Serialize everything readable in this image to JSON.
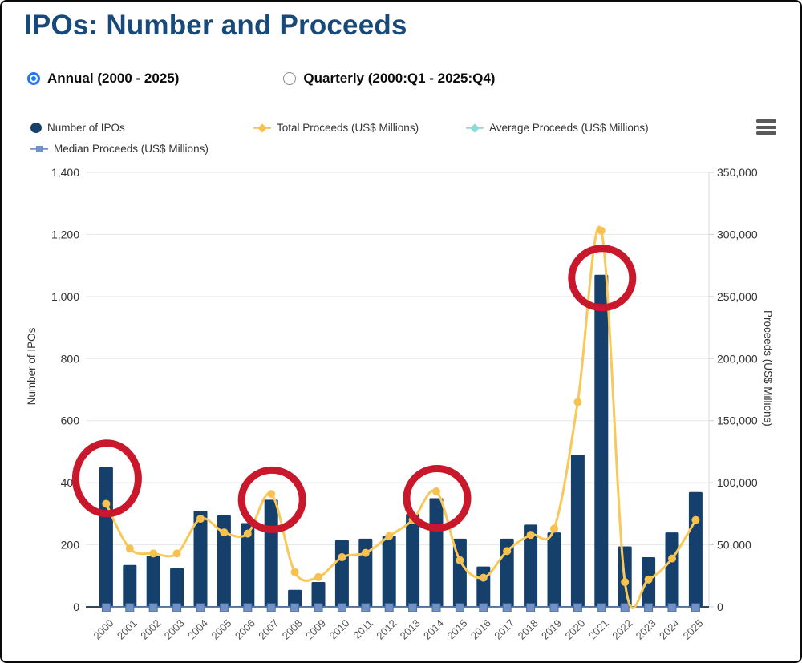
{
  "page": {
    "title": "IPOs: Number and Proceeds"
  },
  "controls": {
    "annual_label": "Annual (2000 - 2025)",
    "quarterly_label": "Quarterly (2000:Q1 - 2025:Q4)",
    "selected": "annual"
  },
  "legend": [
    {
      "label": "Number of IPOs",
      "marker": "circle",
      "color": "#15406B"
    },
    {
      "label": "Total Proceeds (US$ Millions)",
      "marker": "diamond-line",
      "color": "#F7C14F"
    },
    {
      "label": "Average Proceeds (US$ Millions)",
      "marker": "diamond-line",
      "color": "#8ADBD6"
    },
    {
      "label": "Median Proceeds (US$ Millions)",
      "marker": "square-line",
      "color": "#7191C7"
    }
  ],
  "chart_data": {
    "type": "bar",
    "subtype": "column + spline combo, dual y-axes",
    "categories": [
      "2000",
      "2001",
      "2002",
      "2003",
      "2004",
      "2005",
      "2006",
      "2007",
      "2008",
      "2009",
      "2010",
      "2011",
      "2012",
      "2013",
      "2014",
      "2015",
      "2016",
      "2017",
      "2018",
      "2019",
      "2020",
      "2021",
      "2022",
      "2023",
      "2024",
      "2025"
    ],
    "series": [
      {
        "name": "Number of IPOs",
        "type": "column",
        "axis": "left",
        "color": "#15406B",
        "values": [
          450,
          135,
          165,
          125,
          310,
          295,
          270,
          345,
          55,
          80,
          215,
          220,
          230,
          300,
          350,
          220,
          130,
          220,
          265,
          240,
          490,
          1070,
          195,
          160,
          240,
          370
        ]
      },
      {
        "name": "Total Proceeds (US$ Millions)",
        "type": "spline",
        "axis": "right",
        "color": "#F9C858",
        "values": [
          83000,
          47000,
          43000,
          43000,
          71000,
          60000,
          59000,
          91000,
          28000,
          24000,
          40000,
          43500,
          57000,
          70000,
          93000,
          37500,
          23500,
          45000,
          58000,
          63000,
          165000,
          303000,
          20000,
          22000,
          39000,
          70000
        ]
      },
      {
        "name": "Average Proceeds (US$ Millions)",
        "type": "spline",
        "axis": "right",
        "color": "#8ADBD6",
        "values": null,
        "values_note": "coincides with the baseline (~0 at this axis scale); not visually distinguishable"
      },
      {
        "name": "Median Proceeds (US$ Millions)",
        "type": "line-square-markers",
        "axis": "right",
        "color": "#7191C7",
        "values": null,
        "values_note": "square markers plotted along the baseline (~0 at this axis scale)"
      }
    ],
    "y_left": {
      "title": "Number of IPOs",
      "min": 0,
      "max": 1400,
      "tick_interval": 200
    },
    "y_right": {
      "title": "Proceeds (US$ Millions)",
      "min": 0,
      "max": 350000,
      "tick_interval": 50000
    },
    "x_axis": {
      "label_rotation": -45,
      "grid": "horizontal only"
    },
    "annotations": {
      "shape": "red-circle-outline",
      "color": "#C9172B",
      "highlighted_years": [
        "2000",
        "2007",
        "2014",
        "2021"
      ]
    },
    "legend_position": "top"
  }
}
